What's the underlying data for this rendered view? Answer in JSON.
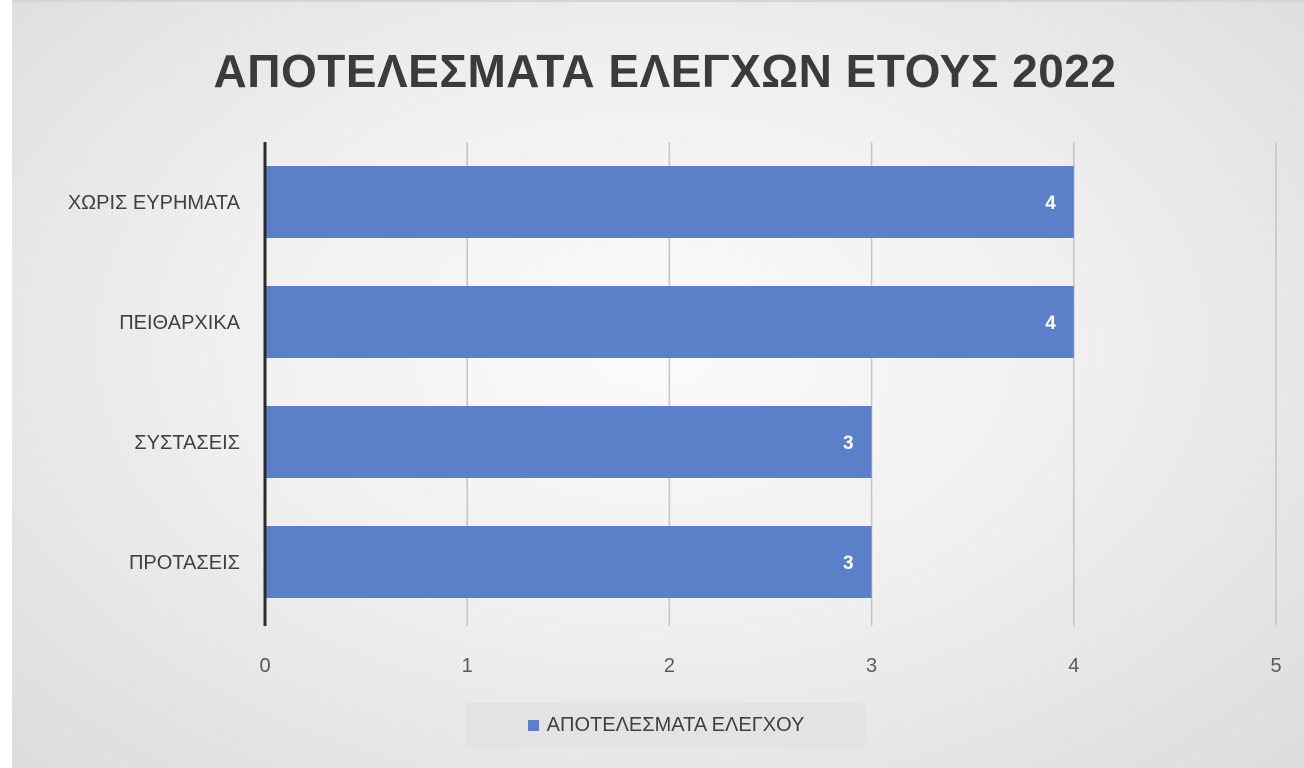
{
  "chart_data": {
    "type": "bar",
    "orientation": "horizontal",
    "title": "ΑΠΟΤΕΛΕΣΜΑΤΑ ΕΛΕΓΧΩΝ ΕΤΟΥΣ 2022",
    "categories": [
      "ΧΩΡΙΣ ΕΥΡΗΜΑΤΑ",
      "ΠΕΙΘΑΡΧΙΚΑ",
      "ΣΥΣΤΑΣΕΙΣ",
      "ΠΡΟΤΑΣΕΙΣ"
    ],
    "series": [
      {
        "name": "ΑΠΟΤΕΛΕΣΜΑΤΑ ΕΛΕΓΧΟΥ",
        "values": [
          4,
          4,
          3,
          3
        ],
        "color": "#5b7fc9"
      }
    ],
    "xlim": [
      0,
      5
    ],
    "xticks": [
      0,
      1,
      2,
      3,
      4,
      5
    ],
    "data_labels": true,
    "grid": true,
    "legend_position": "bottom"
  }
}
